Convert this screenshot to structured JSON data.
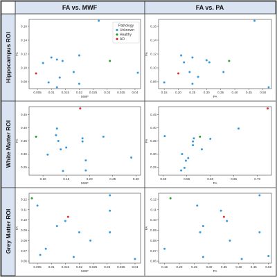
{
  "figure": {
    "columns": [
      "FA vs. MWF",
      "FA vs. PA"
    ],
    "rows": [
      "Hippocampus ROI",
      "White Matter ROI",
      "Grey Matter ROI"
    ]
  },
  "colors": {
    "Unknown": "#3a9ad9",
    "Healthy": "#2a9d2a",
    "AD": "#e0302c"
  },
  "legend": {
    "title": "Pathology",
    "entries": [
      "Unknown",
      "Healthy",
      "AD"
    ],
    "placement": "top-right"
  },
  "chart_data": [
    {
      "type": "scatter",
      "row": 0,
      "col": 0,
      "xlabel": "MWF",
      "ylabel": "FA",
      "xlim": [
        0.002,
        0.042
      ],
      "ylim": [
        0.07,
        0.17
      ],
      "xticks": [
        0.005,
        0.01,
        0.015,
        0.02,
        0.025,
        0.03,
        0.035,
        0.04
      ],
      "yticks": [
        0.08,
        0.1,
        0.12,
        0.14,
        0.16
      ],
      "show_legend": true,
      "points": [
        {
          "x": 0.027,
          "y": 0.168,
          "group": "Unknown"
        },
        {
          "x": 0.01,
          "y": 0.115,
          "group": "Unknown"
        },
        {
          "x": 0.012,
          "y": 0.112,
          "group": "Unknown"
        },
        {
          "x": 0.014,
          "y": 0.11,
          "group": "Unknown"
        },
        {
          "x": 0.02,
          "y": 0.118,
          "group": "Unknown"
        },
        {
          "x": 0.007,
          "y": 0.107,
          "group": "Unknown"
        },
        {
          "x": 0.018,
          "y": 0.094,
          "group": "Unknown"
        },
        {
          "x": 0.013,
          "y": 0.086,
          "group": "Unknown"
        },
        {
          "x": 0.009,
          "y": 0.079,
          "group": "Unknown"
        },
        {
          "x": 0.02,
          "y": 0.077,
          "group": "Unknown"
        },
        {
          "x": 0.012,
          "y": 0.072,
          "group": "Unknown"
        },
        {
          "x": 0.041,
          "y": 0.093,
          "group": "Unknown"
        },
        {
          "x": 0.031,
          "y": 0.11,
          "group": "Healthy"
        },
        {
          "x": 0.0045,
          "y": 0.092,
          "group": "AD"
        }
      ]
    },
    {
      "type": "scatter",
      "row": 0,
      "col": 1,
      "xlabel": "PA",
      "ylabel": "FA",
      "xlim": [
        0.13,
        0.53
      ],
      "ylim": [
        0.07,
        0.17
      ],
      "xticks": [
        0.15,
        0.2,
        0.25,
        0.3,
        0.35,
        0.4,
        0.45,
        0.5
      ],
      "yticks": [
        0.08,
        0.1,
        0.12,
        0.14,
        0.16
      ],
      "show_legend": false,
      "points": [
        {
          "x": 0.47,
          "y": 0.168,
          "group": "Unknown"
        },
        {
          "x": 0.21,
          "y": 0.118,
          "group": "Unknown"
        },
        {
          "x": 0.25,
          "y": 0.115,
          "group": "Unknown"
        },
        {
          "x": 0.3,
          "y": 0.111,
          "group": "Unknown"
        },
        {
          "x": 0.31,
          "y": 0.108,
          "group": "Unknown"
        },
        {
          "x": 0.22,
          "y": 0.108,
          "group": "Unknown"
        },
        {
          "x": 0.36,
          "y": 0.094,
          "group": "Unknown"
        },
        {
          "x": 0.24,
          "y": 0.094,
          "group": "Unknown"
        },
        {
          "x": 0.27,
          "y": 0.087,
          "group": "Unknown"
        },
        {
          "x": 0.15,
          "y": 0.079,
          "group": "Unknown"
        },
        {
          "x": 0.25,
          "y": 0.077,
          "group": "Unknown"
        },
        {
          "x": 0.52,
          "y": 0.072,
          "group": "Unknown"
        },
        {
          "x": 0.38,
          "y": 0.11,
          "group": "Healthy"
        },
        {
          "x": 0.2,
          "y": 0.092,
          "group": "AD"
        }
      ]
    },
    {
      "type": "scatter",
      "row": 1,
      "col": 0,
      "xlabel": "MWF",
      "ylabel": "FA",
      "xlim": [
        0.07,
        0.31
      ],
      "ylim": [
        0.22,
        0.48
      ],
      "xticks": [
        0.1,
        0.15,
        0.2,
        0.25,
        0.3
      ],
      "yticks": [
        0.25,
        0.3,
        0.35,
        0.4,
        0.45
      ],
      "show_legend": false,
      "points": [
        {
          "x": 0.13,
          "y": 0.397,
          "group": "Unknown"
        },
        {
          "x": 0.128,
          "y": 0.372,
          "group": "Unknown"
        },
        {
          "x": 0.23,
          "y": 0.366,
          "group": "Unknown"
        },
        {
          "x": 0.185,
          "y": 0.36,
          "group": "Unknown"
        },
        {
          "x": 0.133,
          "y": 0.35,
          "group": "Unknown"
        },
        {
          "x": 0.185,
          "y": 0.348,
          "group": "Unknown"
        },
        {
          "x": 0.15,
          "y": 0.325,
          "group": "Unknown"
        },
        {
          "x": 0.138,
          "y": 0.318,
          "group": "Unknown"
        },
        {
          "x": 0.11,
          "y": 0.298,
          "group": "Unknown"
        },
        {
          "x": 0.29,
          "y": 0.287,
          "group": "Unknown"
        },
        {
          "x": 0.192,
          "y": 0.276,
          "group": "Unknown"
        },
        {
          "x": 0.192,
          "y": 0.238,
          "group": "Unknown"
        },
        {
          "x": 0.143,
          "y": 0.236,
          "group": "Unknown"
        },
        {
          "x": 0.085,
          "y": 0.366,
          "group": "Healthy"
        },
        {
          "x": 0.18,
          "y": 0.473,
          "group": "AD"
        }
      ]
    },
    {
      "type": "scatter",
      "row": 1,
      "col": 1,
      "xlabel": "PA",
      "ylabel": "FA",
      "xlim": [
        0.49,
        0.73
      ],
      "ylim": [
        0.22,
        0.48
      ],
      "xticks": [
        0.5,
        0.55,
        0.6,
        0.65,
        0.7
      ],
      "yticks": [
        0.25,
        0.3,
        0.35,
        0.4,
        0.45
      ],
      "show_legend": false,
      "points": [
        {
          "x": 0.66,
          "y": 0.397,
          "group": "Unknown"
        },
        {
          "x": 0.503,
          "y": 0.368,
          "group": "Unknown"
        },
        {
          "x": 0.565,
          "y": 0.36,
          "group": "Unknown"
        },
        {
          "x": 0.6,
          "y": 0.358,
          "group": "Unknown"
        },
        {
          "x": 0.563,
          "y": 0.348,
          "group": "Unknown"
        },
        {
          "x": 0.563,
          "y": 0.334,
          "group": "Unknown"
        },
        {
          "x": 0.582,
          "y": 0.318,
          "group": "Unknown"
        },
        {
          "x": 0.54,
          "y": 0.3,
          "group": "Unknown"
        },
        {
          "x": 0.553,
          "y": 0.285,
          "group": "Unknown"
        },
        {
          "x": 0.548,
          "y": 0.275,
          "group": "Unknown"
        },
        {
          "x": 0.545,
          "y": 0.248,
          "group": "Unknown"
        },
        {
          "x": 0.538,
          "y": 0.238,
          "group": "Unknown"
        },
        {
          "x": 0.578,
          "y": 0.366,
          "group": "Healthy"
        },
        {
          "x": 0.722,
          "y": 0.473,
          "group": "AD"
        }
      ]
    },
    {
      "type": "scatter",
      "row": 2,
      "col": 0,
      "xlabel": "MWF",
      "ylabel": "FA",
      "xlim": [
        0.002,
        0.042
      ],
      "ylim": [
        0.058,
        0.126
      ],
      "xticks": [
        0.005,
        0.01,
        0.015,
        0.02,
        0.025,
        0.03,
        0.035,
        0.04
      ],
      "yticks": [
        0.06,
        0.07,
        0.08,
        0.09,
        0.1,
        0.11,
        0.12
      ],
      "show_legend": false,
      "points": [
        {
          "x": 0.031,
          "y": 0.124,
          "group": "Unknown"
        },
        {
          "x": 0.005,
          "y": 0.114,
          "group": "Unknown"
        },
        {
          "x": 0.031,
          "y": 0.109,
          "group": "Unknown"
        },
        {
          "x": 0.015,
          "y": 0.099,
          "group": "Unknown"
        },
        {
          "x": 0.012,
          "y": 0.094,
          "group": "Unknown"
        },
        {
          "x": 0.02,
          "y": 0.088,
          "group": "Unknown"
        },
        {
          "x": 0.031,
          "y": 0.088,
          "group": "Unknown"
        },
        {
          "x": 0.024,
          "y": 0.08,
          "group": "Unknown"
        },
        {
          "x": 0.008,
          "y": 0.072,
          "group": "Unknown"
        },
        {
          "x": 0.006,
          "y": 0.066,
          "group": "Unknown"
        },
        {
          "x": 0.018,
          "y": 0.064,
          "group": "Unknown"
        },
        {
          "x": 0.04,
          "y": 0.062,
          "group": "Unknown"
        },
        {
          "x": 0.003,
          "y": 0.121,
          "group": "Healthy"
        },
        {
          "x": 0.016,
          "y": 0.103,
          "group": "AD"
        }
      ]
    },
    {
      "type": "scatter",
      "row": 2,
      "col": 1,
      "xlabel": "PA",
      "ylabel": "FA",
      "xlim": [
        0.13,
        0.51
      ],
      "ylim": [
        0.058,
        0.126
      ],
      "xticks": [
        0.15,
        0.2,
        0.25,
        0.3,
        0.35,
        0.4,
        0.45,
        0.5
      ],
      "yticks": [
        0.06,
        0.07,
        0.08,
        0.09,
        0.1,
        0.11,
        0.12
      ],
      "show_legend": false,
      "points": [
        {
          "x": 0.47,
          "y": 0.124,
          "group": "Unknown"
        },
        {
          "x": 0.26,
          "y": 0.114,
          "group": "Unknown"
        },
        {
          "x": 0.34,
          "y": 0.109,
          "group": "Unknown"
        },
        {
          "x": 0.36,
          "y": 0.099,
          "group": "Unknown"
        },
        {
          "x": 0.28,
          "y": 0.094,
          "group": "Unknown"
        },
        {
          "x": 0.27,
          "y": 0.088,
          "group": "Unknown"
        },
        {
          "x": 0.47,
          "y": 0.088,
          "group": "Unknown"
        },
        {
          "x": 0.37,
          "y": 0.08,
          "group": "Unknown"
        },
        {
          "x": 0.15,
          "y": 0.072,
          "group": "Unknown"
        },
        {
          "x": 0.28,
          "y": 0.064,
          "group": "Unknown"
        },
        {
          "x": 0.41,
          "y": 0.062,
          "group": "Unknown"
        },
        {
          "x": 0.5,
          "y": 0.065,
          "group": "Unknown"
        },
        {
          "x": 0.17,
          "y": 0.121,
          "group": "Healthy"
        },
        {
          "x": 0.35,
          "y": 0.103,
          "group": "AD"
        }
      ]
    }
  ]
}
